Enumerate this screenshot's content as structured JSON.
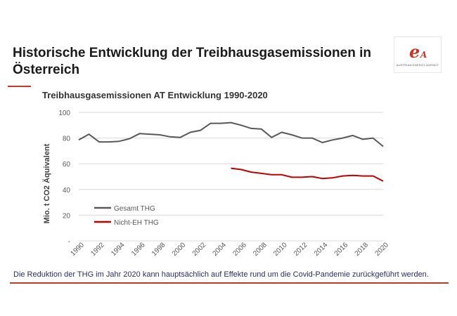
{
  "slide": {
    "title": "Historische Entwicklung der Treibhausgasemissionen in Österreich",
    "footer_note": "Die Reduktion der THG im Jahr 2020 kann hauptsächlich auf Effekte rund um die Covid-Pandemie zurückgeführt werden."
  },
  "logo": {
    "text": "AUSTRIAN ENERGY AGENCY",
    "mark_e": "e",
    "mark_a": "A"
  },
  "colors": {
    "accent": "#c0392b",
    "series_gesamt": "#595959",
    "series_nicht_eh": "#c00000",
    "gridline": "#d9d9d9"
  },
  "chart_data": {
    "type": "line",
    "title": "Treibhausgasemissionen AT Entwicklung 1990-2020",
    "xlabel": "",
    "ylabel": "Mio. t CO2 Äquivalent",
    "xlim": [
      1990,
      2020
    ],
    "ylim": [
      0,
      100
    ],
    "y_ticks": [
      {
        "value": 0,
        "label": "-"
      },
      {
        "value": 20,
        "label": "20"
      },
      {
        "value": 40,
        "label": "40"
      },
      {
        "value": 60,
        "label": "60"
      },
      {
        "value": 80,
        "label": "80"
      },
      {
        "value": 100,
        "label": "100"
      }
    ],
    "x_ticks": [
      1990,
      1992,
      1994,
      1996,
      1998,
      2000,
      2002,
      2004,
      2006,
      2008,
      2010,
      2012,
      2014,
      2016,
      2018,
      2020
    ],
    "grid": true,
    "legend_position": "bottom-left",
    "series": [
      {
        "name": "Gesamt THG",
        "color": "#595959",
        "x": [
          1990,
          1991,
          1992,
          1993,
          1994,
          1995,
          1996,
          1997,
          1998,
          1999,
          2000,
          2001,
          2002,
          2003,
          2004,
          2005,
          2006,
          2007,
          2008,
          2009,
          2010,
          2011,
          2012,
          2013,
          2014,
          2015,
          2016,
          2017,
          2018,
          2019,
          2020
        ],
        "values": [
          78.5,
          83,
          77,
          77,
          77.5,
          79.5,
          83.5,
          83,
          82.5,
          81,
          80.5,
          84.5,
          86,
          91.5,
          91.5,
          92,
          90,
          87.5,
          87,
          80.5,
          84.5,
          82.5,
          80,
          80,
          76.5,
          78.5,
          80,
          82,
          79,
          80,
          73.5
        ]
      },
      {
        "name": "Nicht-EH THG",
        "color": "#c00000",
        "x": [
          2005,
          2006,
          2007,
          2008,
          2009,
          2010,
          2011,
          2012,
          2013,
          2014,
          2015,
          2016,
          2017,
          2018,
          2019,
          2020
        ],
        "values": [
          56.5,
          55.5,
          53.5,
          52.5,
          51.5,
          51.5,
          49.5,
          49.5,
          50,
          48.5,
          49,
          50.5,
          51,
          50.5,
          50.5,
          46.5
        ]
      }
    ]
  }
}
